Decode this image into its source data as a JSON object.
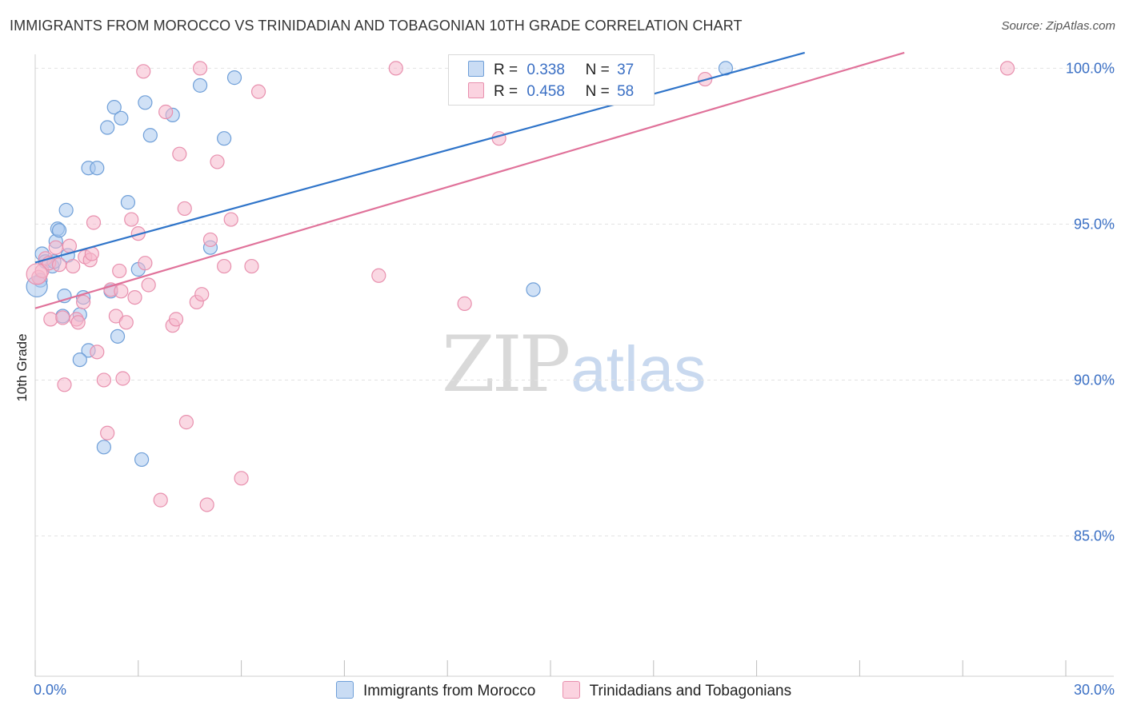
{
  "header": {
    "title": "IMMIGRANTS FROM MOROCCO VS TRINIDADIAN AND TOBAGONIAN 10TH GRADE CORRELATION CHART",
    "source": "Source: ZipAtlas.com"
  },
  "watermark": {
    "zip": "ZIP",
    "atlas": "atlas"
  },
  "legend": {
    "r_label": "R =",
    "n_label": "N =",
    "rows": [
      {
        "r": "0.338",
        "n": "37"
      },
      {
        "r": "0.458",
        "n": "58"
      }
    ]
  },
  "colors": {
    "blue_fill": "#aac8ee",
    "blue_stroke": "#6f9fd8",
    "blue_line": "#2f74c9",
    "pink_fill": "#f5b8cc",
    "pink_stroke": "#e890ae",
    "pink_line": "#e0729a",
    "tick_label": "#3a6fc4",
    "grid": "#e3e3e3"
  },
  "chart_data": {
    "type": "scatter",
    "title": "IMMIGRANTS FROM MOROCCO VS TRINIDADIAN AND TOBAGONIAN 10TH GRADE CORRELATION CHART",
    "xlabel": "",
    "ylabel": "10th Grade",
    "xlim": [
      0,
      30
    ],
    "ylim": [
      80.5,
      100.6
    ],
    "x_tick_labels": [
      {
        "value": 0,
        "label": "0.0%"
      },
      {
        "value": 30,
        "label": "30.0%"
      }
    ],
    "x_minor_ticks": [
      0,
      3,
      6,
      9,
      12,
      15,
      18,
      21,
      24,
      27,
      30
    ],
    "y_tick_labels": [
      {
        "value": 100,
        "label": "100.0%"
      },
      {
        "value": 95,
        "label": "95.0%"
      },
      {
        "value": 90,
        "label": "90.0%"
      },
      {
        "value": 85,
        "label": "85.0%"
      }
    ],
    "grid": true,
    "series": [
      {
        "name": "Immigrants from Morocco",
        "color": "blue",
        "r": 0.338,
        "n": 37,
        "trend": {
          "x": [
            0,
            22.4
          ],
          "y": [
            93.77,
            100.5
          ]
        },
        "points": [
          [
            0.2,
            94.05
          ],
          [
            0.3,
            93.8
          ],
          [
            0.5,
            93.65
          ],
          [
            0.6,
            94.45
          ],
          [
            0.55,
            93.8
          ],
          [
            0.65,
            94.85
          ],
          [
            0.7,
            94.8
          ],
          [
            0.9,
            95.45
          ],
          [
            0.95,
            94.0
          ],
          [
            0.85,
            92.7
          ],
          [
            0.8,
            92.05
          ],
          [
            1.3,
            92.1
          ],
          [
            1.4,
            92.65
          ],
          [
            1.55,
            90.95
          ],
          [
            1.3,
            90.65
          ],
          [
            1.55,
            96.8
          ],
          [
            1.8,
            96.8
          ],
          [
            2.1,
            98.1
          ],
          [
            2.3,
            98.75
          ],
          [
            2.5,
            98.4
          ],
          [
            2.2,
            92.85
          ],
          [
            2.4,
            91.4
          ],
          [
            2.7,
            95.7
          ],
          [
            3.0,
            93.55
          ],
          [
            3.2,
            98.9
          ],
          [
            3.35,
            97.85
          ],
          [
            4.0,
            98.5
          ],
          [
            4.8,
            99.45
          ],
          [
            5.1,
            94.25
          ],
          [
            5.5,
            97.75
          ],
          [
            5.8,
            99.7
          ],
          [
            3.1,
            87.45
          ],
          [
            2.0,
            87.85
          ],
          [
            14.5,
            92.9
          ],
          [
            20.1,
            100.0
          ],
          [
            0.15,
            93.2
          ],
          [
            0.05,
            93.0
          ]
        ]
      },
      {
        "name": "Trinidadians and Tobagonians",
        "color": "pink",
        "r": 0.458,
        "n": 58,
        "trend": {
          "x": [
            0,
            25.3
          ],
          "y": [
            92.3,
            100.5
          ]
        },
        "points": [
          [
            0.1,
            93.3
          ],
          [
            0.2,
            93.5
          ],
          [
            0.3,
            93.9
          ],
          [
            0.4,
            93.75
          ],
          [
            0.45,
            91.95
          ],
          [
            0.6,
            94.25
          ],
          [
            0.7,
            93.7
          ],
          [
            0.8,
            92.0
          ],
          [
            0.85,
            89.85
          ],
          [
            1.0,
            94.3
          ],
          [
            1.1,
            93.65
          ],
          [
            1.2,
            91.95
          ],
          [
            1.25,
            91.85
          ],
          [
            1.4,
            92.5
          ],
          [
            1.45,
            93.95
          ],
          [
            1.6,
            93.85
          ],
          [
            1.65,
            94.05
          ],
          [
            1.7,
            95.05
          ],
          [
            1.8,
            90.9
          ],
          [
            2.0,
            90.0
          ],
          [
            2.1,
            88.3
          ],
          [
            2.2,
            92.9
          ],
          [
            2.35,
            92.05
          ],
          [
            2.45,
            93.5
          ],
          [
            2.5,
            92.85
          ],
          [
            2.55,
            90.05
          ],
          [
            2.65,
            91.85
          ],
          [
            2.8,
            95.15
          ],
          [
            2.9,
            92.65
          ],
          [
            3.0,
            94.7
          ],
          [
            3.15,
            99.9
          ],
          [
            3.2,
            93.75
          ],
          [
            3.3,
            93.05
          ],
          [
            3.65,
            86.15
          ],
          [
            3.8,
            98.6
          ],
          [
            4.0,
            91.75
          ],
          [
            4.1,
            91.95
          ],
          [
            4.2,
            97.25
          ],
          [
            4.35,
            95.5
          ],
          [
            4.4,
            88.65
          ],
          [
            4.7,
            92.5
          ],
          [
            4.85,
            92.75
          ],
          [
            4.8,
            100.0
          ],
          [
            5.0,
            86.0
          ],
          [
            5.1,
            94.5
          ],
          [
            5.3,
            97.0
          ],
          [
            5.5,
            93.65
          ],
          [
            5.7,
            95.15
          ],
          [
            6.0,
            86.85
          ],
          [
            6.3,
            93.65
          ],
          [
            6.5,
            99.25
          ],
          [
            10.0,
            93.35
          ],
          [
            10.5,
            100.0
          ],
          [
            12.5,
            92.45
          ],
          [
            13.5,
            97.75
          ],
          [
            19.5,
            99.65
          ],
          [
            28.3,
            100.0
          ],
          [
            0.05,
            93.4
          ]
        ]
      }
    ]
  }
}
